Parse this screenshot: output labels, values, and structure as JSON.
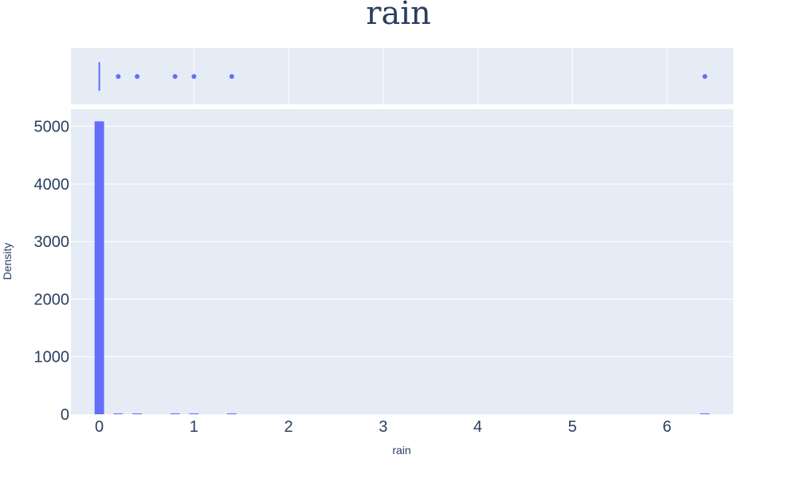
{
  "chart_data": {
    "type": "bar",
    "title": "rain",
    "xlabel": "rain",
    "ylabel": "Density",
    "xlim": [
      -0.3,
      6.7
    ],
    "ylim": [
      0,
      5300
    ],
    "x_ticks": [
      0,
      1,
      2,
      3,
      4,
      5,
      6
    ],
    "y_ticks": [
      0,
      1000,
      2000,
      3000,
      4000,
      5000
    ],
    "bin_width": 0.1,
    "histogram": [
      {
        "x": 0.0,
        "density": 5088
      },
      {
        "x": 0.2,
        "density": 15
      },
      {
        "x": 0.4,
        "density": 15
      },
      {
        "x": 0.8,
        "density": 15
      },
      {
        "x": 1.0,
        "density": 15
      },
      {
        "x": 1.4,
        "density": 15
      },
      {
        "x": 6.4,
        "density": 15
      }
    ],
    "marginal_strip_points": [
      0.2,
      0.4,
      0.8,
      1.0,
      1.4,
      6.4
    ],
    "marginal_box_at": 0.0,
    "grid": true,
    "colors": {
      "bar": "#636efa",
      "plot_bg": "#e5ecf6",
      "grid": "#ffffff",
      "text": "#2a3f5f"
    }
  }
}
